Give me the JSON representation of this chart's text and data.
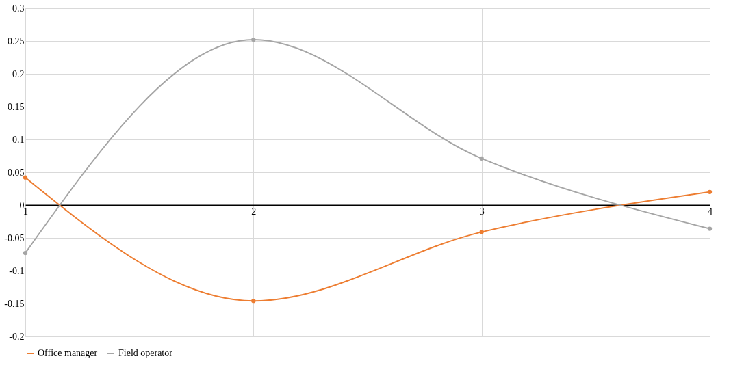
{
  "chart_data": {
    "type": "line",
    "x": [
      1,
      2,
      3,
      4
    ],
    "xlim": [
      1,
      4
    ],
    "xticks": [
      1,
      2,
      3,
      4
    ],
    "ylim": [
      -0.2,
      0.3
    ],
    "yticks": [
      -0.2,
      -0.15,
      -0.1,
      -0.05,
      0,
      0.05,
      0.1,
      0.15,
      0.2,
      0.25,
      0.3
    ],
    "grid": true,
    "legend": "bottom",
    "marker": "circle",
    "line_style": "solid",
    "series": [
      {
        "name": "Office manager",
        "color": "#ed7d31",
        "values": [
          0.042,
          -0.146,
          -0.041,
          0.02
        ]
      },
      {
        "name": "Field operator",
        "color": "#a5a5a5",
        "values": [
          -0.073,
          0.252,
          0.071,
          -0.036
        ]
      }
    ]
  }
}
